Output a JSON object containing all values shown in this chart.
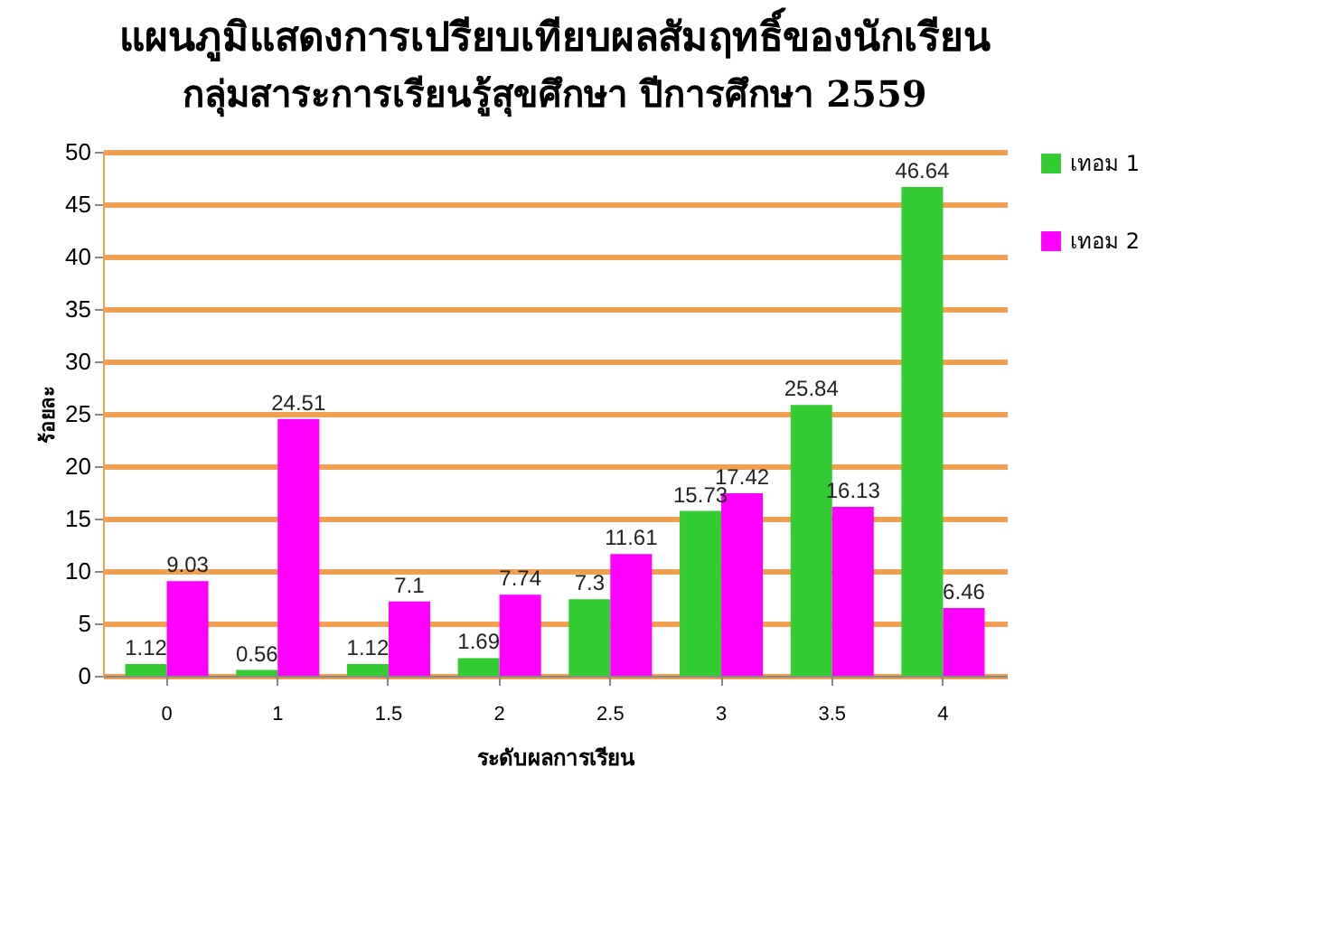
{
  "chart_data": {
    "type": "bar",
    "title": "แผนภูมิแสดงการเปรียบเทียบผลสัมฤทธิ์ของนักเรียน",
    "subtitle": "กลุ่มสาระการเรียนรู้สุขศึกษา ปีการศึกษา 2559",
    "xlabel": "ระดับผลการเรียน",
    "ylabel": "ร้อยละ",
    "categories": [
      "0",
      "1",
      "1.5",
      "2",
      "2.5",
      "3",
      "3.5",
      "4"
    ],
    "series": [
      {
        "name": "เทอม 1",
        "color": "#33cc33",
        "values": [
          1.12,
          0.56,
          1.12,
          1.69,
          7.3,
          15.73,
          25.84,
          46.64
        ]
      },
      {
        "name": "เทอม 2",
        "color": "#ff00ff",
        "values": [
          9.03,
          24.51,
          7.1,
          7.74,
          11.61,
          17.42,
          16.13,
          6.46
        ]
      }
    ],
    "ylim": [
      0,
      50
    ],
    "yticks": [
      0,
      5,
      10,
      15,
      20,
      25,
      30,
      35,
      40,
      45,
      50
    ],
    "grid": "y",
    "legend": "right",
    "data_labels": true
  }
}
